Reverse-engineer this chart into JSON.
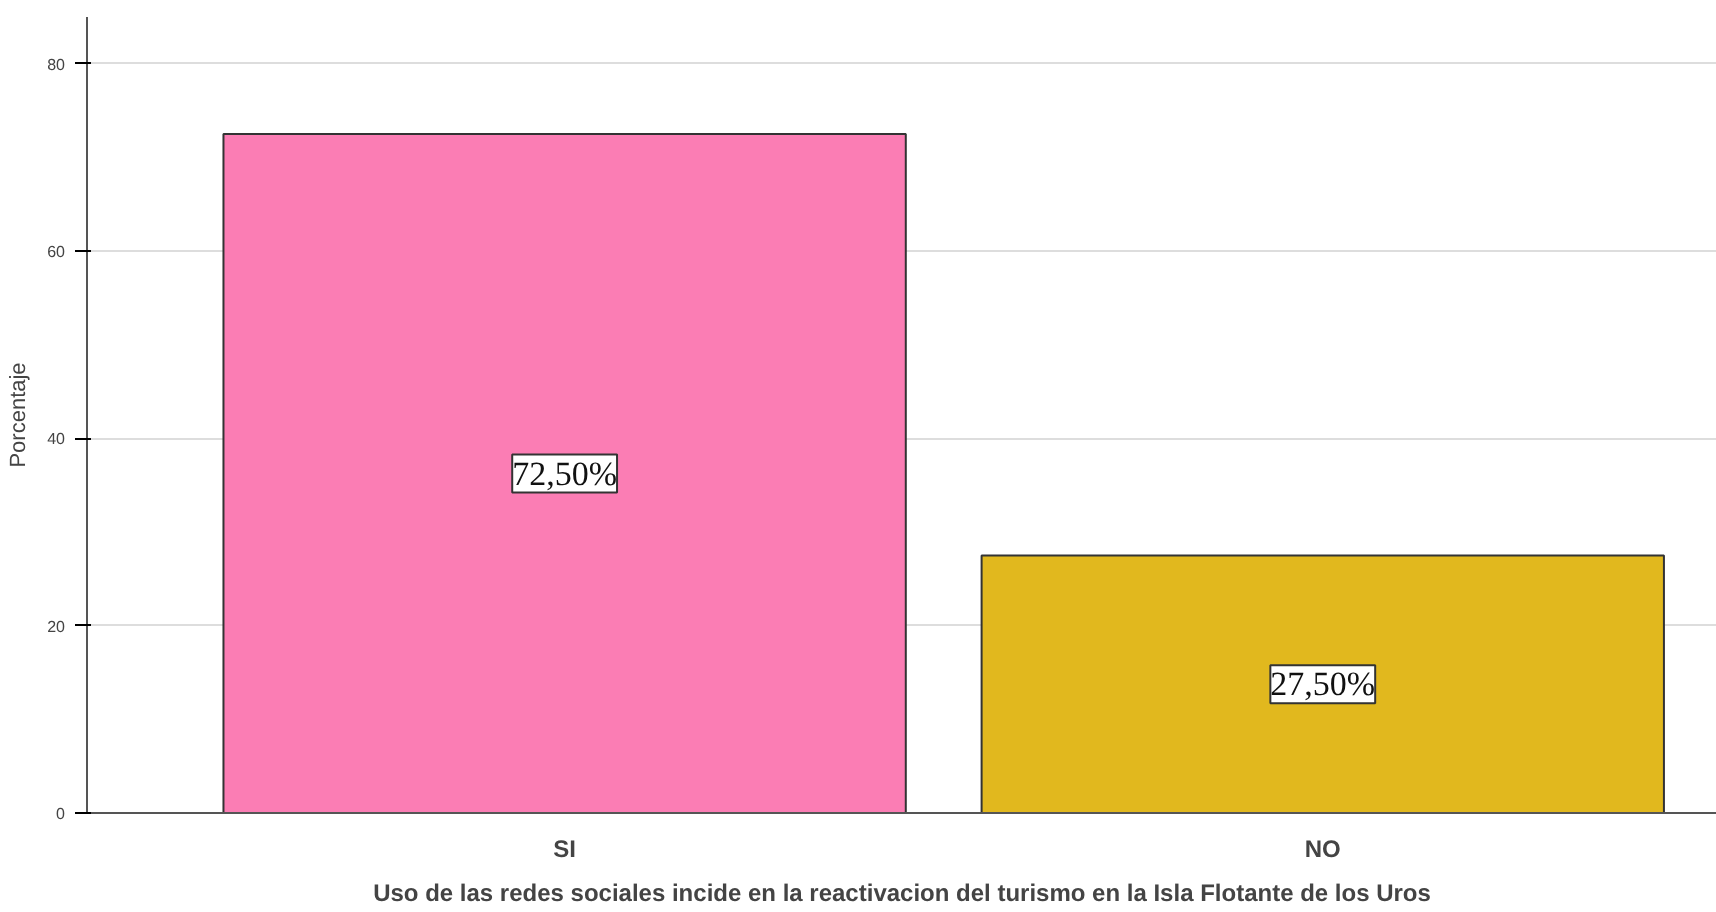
{
  "chart_data": {
    "type": "bar",
    "xlabel": "Uso de las redes sociales incide en la reactivacion del turismo en la Isla Flotante de los Uros",
    "ylabel": "Porcentaje",
    "categories": [
      "SI",
      "NO"
    ],
    "values": [
      72.5,
      27.5
    ],
    "colors": [
      "#fb7db4",
      "#e1b81e"
    ],
    "value_labels": [
      "72,50%",
      "27,50%"
    ],
    "ylim": [
      0,
      85
    ],
    "yticks": [
      0,
      20,
      40,
      60,
      80
    ],
    "grid": "y"
  }
}
